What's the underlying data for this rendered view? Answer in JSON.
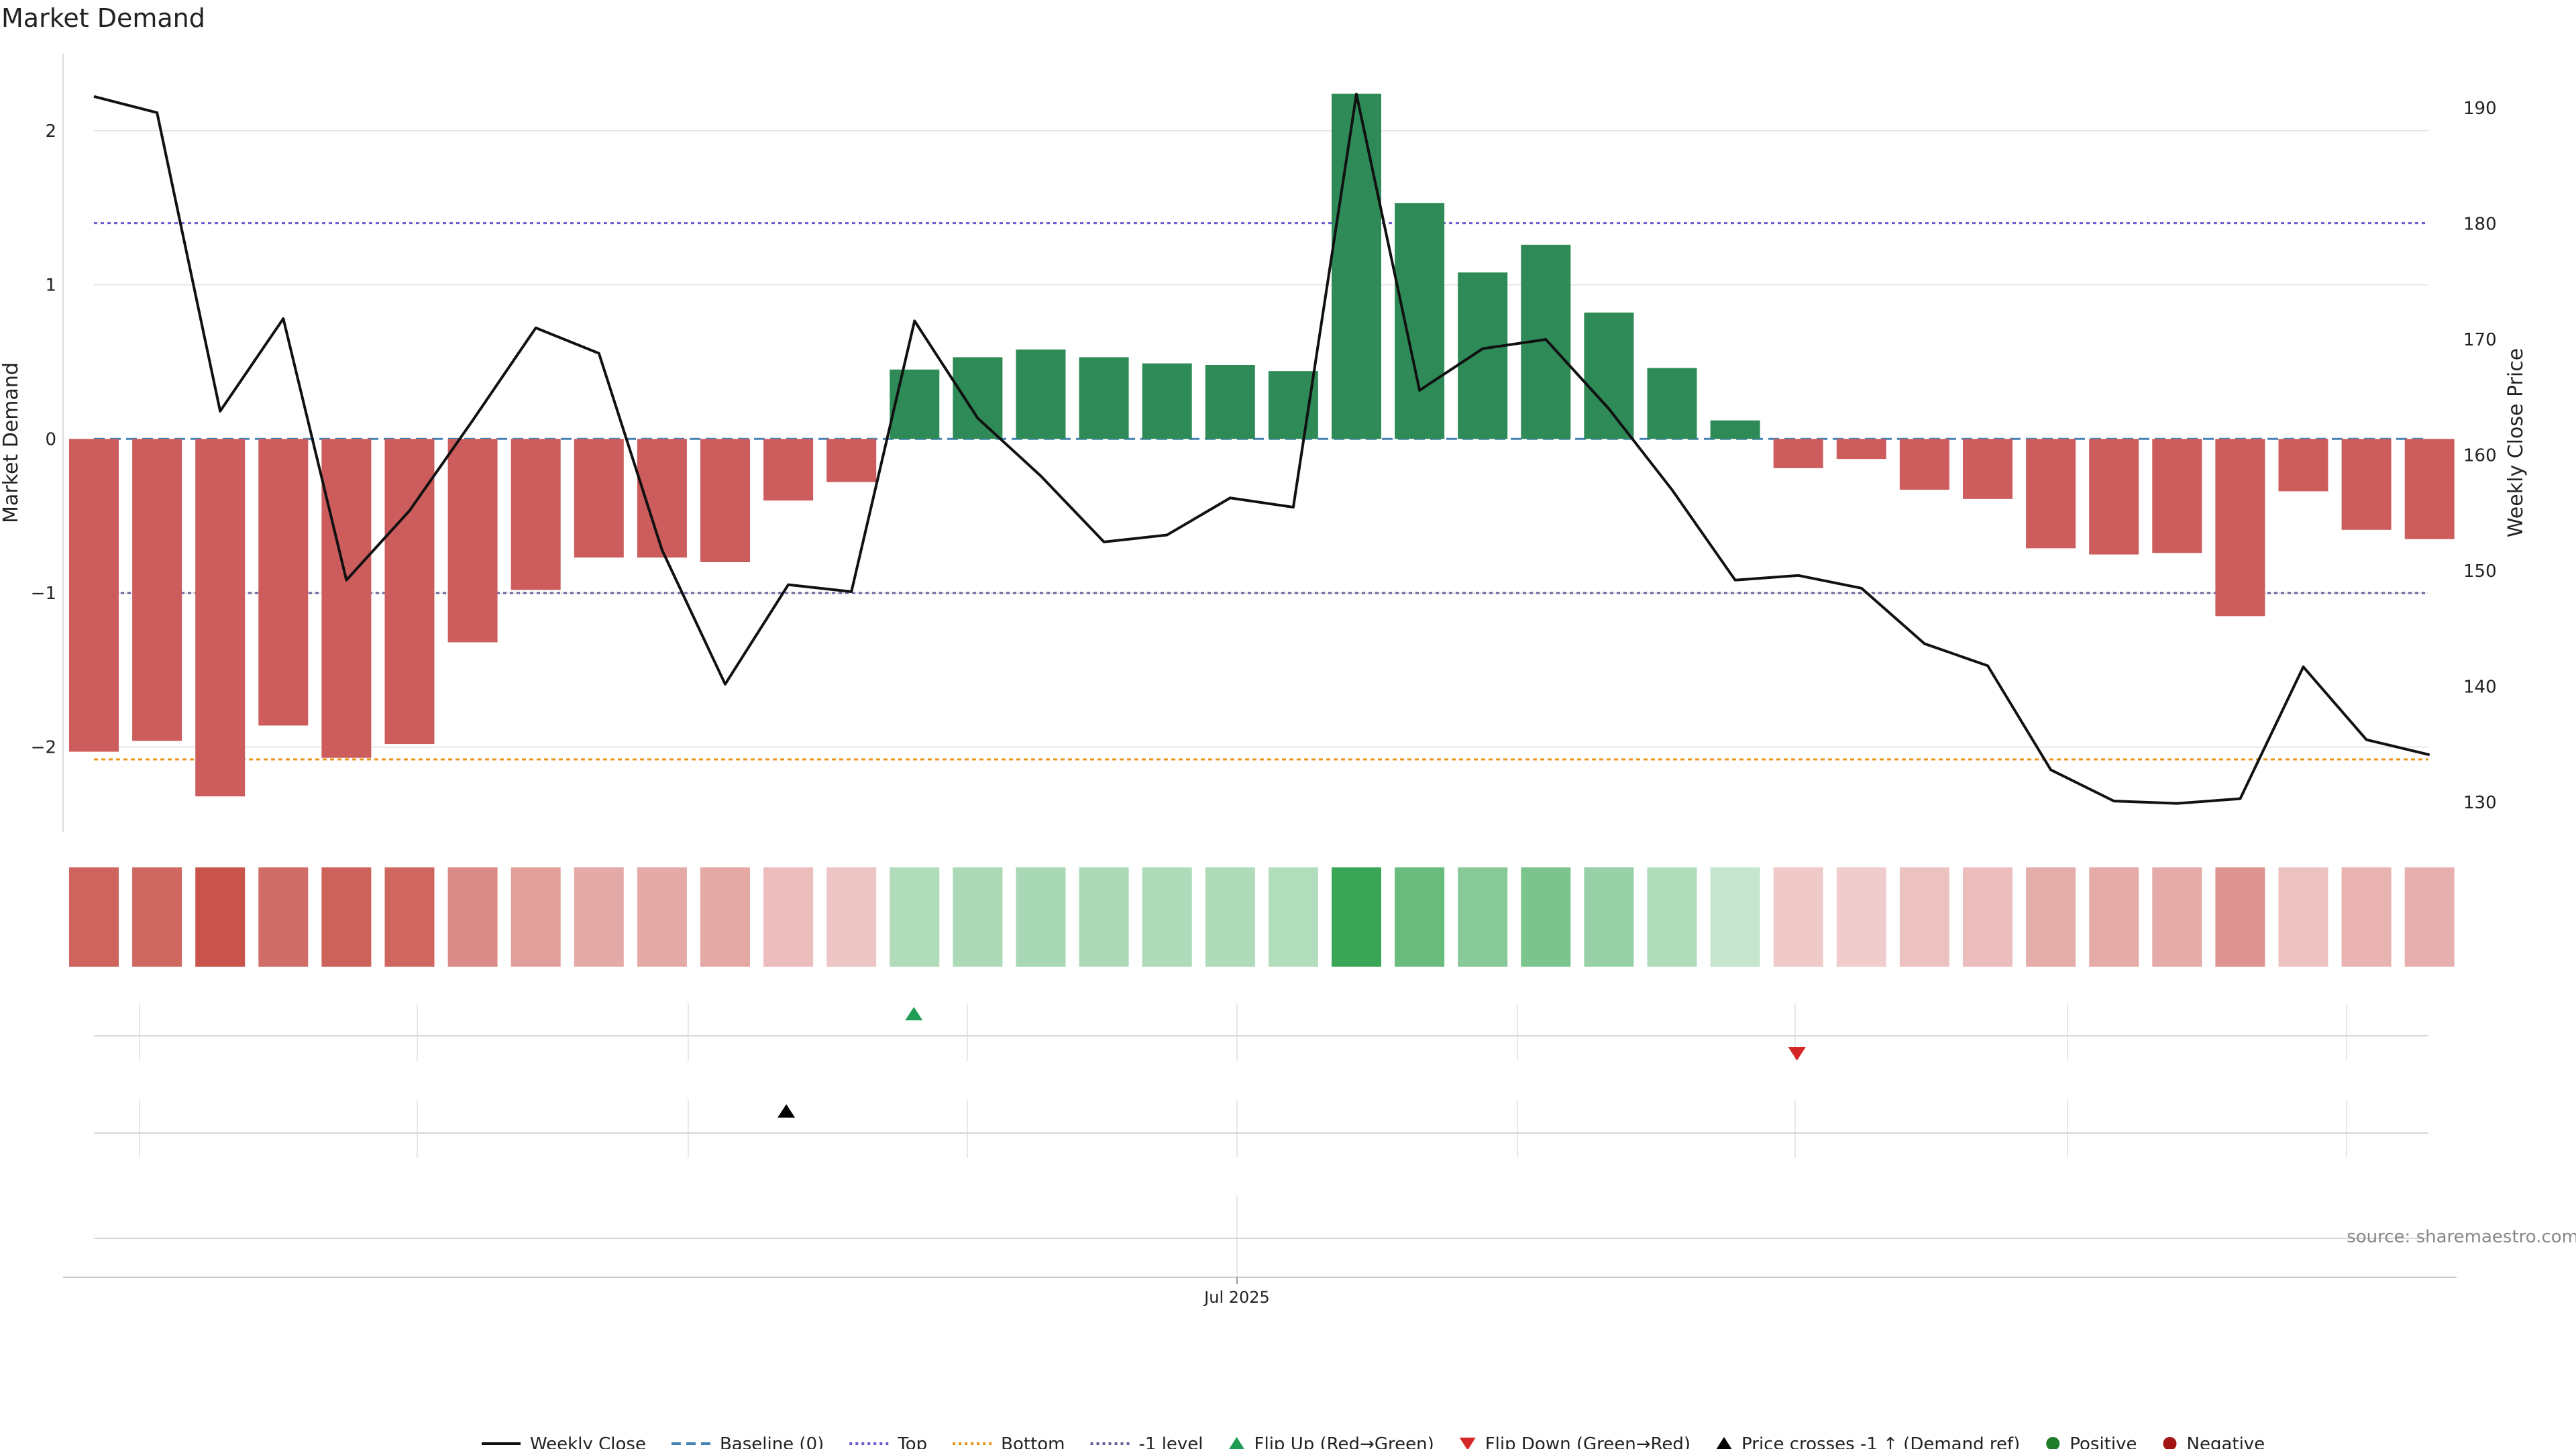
{
  "chart_data": {
    "type": "bar",
    "title": "Market Demand",
    "ylabel": "Market Demand",
    "y2label": "Weekly Close Price",
    "ylim": [
      -2.55,
      2.5
    ],
    "y2lim": [
      127.44,
      194.7
    ],
    "yticks": [
      2,
      1,
      0,
      -1,
      -2
    ],
    "ytick_labels": [
      "2",
      "1",
      "0",
      "−1",
      "−2"
    ],
    "y2ticks": [
      190,
      180,
      170,
      160,
      150,
      140,
      130
    ],
    "y2tick_labels": [
      "190",
      "180",
      "170",
      "160",
      "150",
      "140",
      "130"
    ],
    "xtick_label": "Jul 2025",
    "source": "source: sharemaestro.com",
    "demand": [
      -2.03,
      -1.96,
      -2.32,
      -1.86,
      -2.07,
      -1.98,
      -1.32,
      -0.98,
      -0.77,
      -0.77,
      -0.8,
      -0.4,
      -0.28,
      0.45,
      0.53,
      0.58,
      0.53,
      0.49,
      0.48,
      0.44,
      2.24,
      1.53,
      1.08,
      1.26,
      0.82,
      0.46,
      0.12,
      -0.19,
      -0.13,
      -0.33,
      -0.39,
      -0.71,
      -0.75,
      -0.74,
      -1.15,
      -0.34,
      -0.59,
      -0.65
    ],
    "close": [
      191.0,
      189.6,
      163.8,
      171.8,
      149.2,
      155.2,
      163.0,
      171.0,
      168.8,
      151.8,
      140.2,
      148.8,
      148.2,
      171.6,
      163.2,
      158.2,
      152.5,
      153.1,
      156.3,
      155.5,
      191.2,
      165.6,
      169.2,
      170.0,
      164.0,
      157.0,
      149.2,
      149.6,
      148.5,
      143.7,
      141.8,
      132.8,
      130.1,
      129.9,
      130.3,
      141.7,
      135.4,
      134.1
    ],
    "levels": {
      "baseline": 0,
      "top": 1.4,
      "bottom": -2.08,
      "minus_one": -1
    },
    "flip_up_index": 13,
    "flip_down_index": 27,
    "price_cross_index": 11,
    "colors": {
      "positive": "#2e8b57",
      "negative": "#cd5c5c",
      "line": "#111111",
      "baseline": "#4682b4",
      "top": "#6a5acd",
      "bottom": "#e8941a",
      "minus_one": "#6b5f9a",
      "flip_up": "#1f9d55",
      "flip_down": "#d62728",
      "cross": "#000000",
      "legend_pos": "#1f7a2a",
      "legend_neg": "#a31515"
    },
    "legend": [
      {
        "label": "Weekly Close",
        "kind": "line-solid",
        "color": "#111111"
      },
      {
        "label": "Baseline (0)",
        "kind": "line-dash",
        "color": "#4682b4"
      },
      {
        "label": "Top",
        "kind": "line-dot",
        "color": "#6a5acd"
      },
      {
        "label": "Bottom",
        "kind": "line-dot",
        "color": "#e8941a"
      },
      {
        "label": "-1 level",
        "kind": "line-dot",
        "color": "#6b5f9a"
      },
      {
        "label": "Flip Up (Red→Green)",
        "kind": "tri-up",
        "color": "#1f9d55"
      },
      {
        "label": "Flip Down (Green→Red)",
        "kind": "tri-down",
        "color": "#d62728"
      },
      {
        "label": "Price crosses -1 ↑ (Demand ref)",
        "kind": "tri-up",
        "color": "#000000"
      },
      {
        "label": "Positive",
        "kind": "dot",
        "color": "#1f7a2a"
      },
      {
        "label": "Negative",
        "kind": "dot",
        "color": "#a31515"
      }
    ]
  }
}
